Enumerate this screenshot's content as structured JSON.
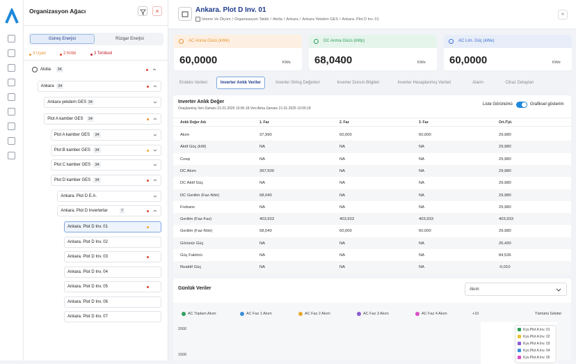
{
  "tree": {
    "title": "Organizasyon Ağacı",
    "tabs": [
      "Güneş Enerjisi",
      "Rüzgar Enerjisi"
    ],
    "alerts": [
      {
        "label": "3 Uyarı",
        "color": "#e8912d"
      },
      {
        "label": "2 Kritik",
        "color": "#d9412f"
      },
      {
        "label": "3 Tehlikeli",
        "color": "#c0232f"
      }
    ],
    "nodes": [
      {
        "label": "Atolia",
        "count": "34",
        "depth": 0,
        "dot": "#d9412f",
        "expanded": true
      },
      {
        "label": "Ankara",
        "count": "34",
        "depth": 1,
        "dot": "#d9412f",
        "expanded": true
      },
      {
        "label": "Ankara yekdem GES",
        "count": "34",
        "depth": 2,
        "dot": null,
        "expanded": false
      },
      {
        "label": "Plot A kamber GES",
        "count": "34",
        "depth": 2,
        "dot": "#e8912d",
        "expanded": true
      },
      {
        "label": "Plot A kamber GES",
        "count": "34",
        "depth": 3,
        "dot": null,
        "expanded": false
      },
      {
        "label": "Plot B kamber GES",
        "count": "34",
        "depth": 3,
        "dot": "#e8a82d",
        "expanded": false
      },
      {
        "label": "Plot C kamber GES",
        "count": "34",
        "depth": 3,
        "dot": null,
        "expanded": false
      },
      {
        "label": "Plot D kamber GES",
        "count": "34",
        "depth": 3,
        "dot": "#d9412f",
        "expanded": true
      },
      {
        "label": "Ankara. Plot D E.A.",
        "count": null,
        "depth": 4,
        "dot": null,
        "expanded": false
      },
      {
        "label": "Ankara. Plot D Inverterlar",
        "count": "7",
        "depth": 4,
        "dot": "#d9412f",
        "expanded": true
      },
      {
        "label": "Ankara. Plot D Inv. 01",
        "count": null,
        "depth": 5,
        "dot": "#e8a82d",
        "selected": true
      },
      {
        "label": "Ankara. Plot D Inv. 02",
        "count": null,
        "depth": 5,
        "dot": null
      },
      {
        "label": "Ankara. Plot D Inv. 03",
        "count": null,
        "depth": 5,
        "dot": "#d9412f"
      },
      {
        "label": "Ankara. Plot D Inv. 04",
        "count": null,
        "depth": 5,
        "dot": null
      },
      {
        "label": "Ankara. Plot D Inv. 05",
        "count": null,
        "depth": 5,
        "dot": "#d9412f"
      },
      {
        "label": "Ankara. Plot D Inv. 06",
        "count": null,
        "depth": 5,
        "dot": null
      },
      {
        "label": "Ankara. Plot D Inv. 07",
        "count": null,
        "depth": 5,
        "dot": null
      }
    ]
  },
  "header": {
    "title": "Ankara. Plot D Inv. 01",
    "breadcrumb": [
      "İzleme Ve Ölçüm",
      "Organizasyon Takibi",
      "Atolia",
      "Ankara",
      "Ankara Yekdem GES",
      "Ankara. Plot D Inv. 01"
    ],
    "separator": "/"
  },
  "cards": [
    {
      "label": "AC Anma Gücü (kWe)",
      "value": "60,0000",
      "unit": "KWe",
      "color": "#fdf0e2",
      "accent": "#e8912d"
    },
    {
      "label": "DC Anma Gücü (kWp)",
      "value": "68,0400",
      "unit": "KWe",
      "color": "#e6f5ec",
      "accent": "#2f9e5b"
    },
    {
      "label": "AC Lim. Güç (kWe)",
      "value": "60,0000",
      "unit": "KWe",
      "color": "#e8eef9",
      "accent": "#3b6fd1"
    }
  ],
  "tabs": {
    "items": [
      "Endeks Verileri",
      "Inverter Anlık Veriler",
      "Inverter String Değerleri",
      "Inverter Durum Bilgileri",
      "Inverter Hesaplanmış Verileri",
      "Alarm",
      "Cihaz Detayları"
    ],
    "active": 1
  },
  "table": {
    "title": "Inverter Anlık Değer",
    "subtitle": "Onaylanmış Veri Zamanı 21.01.2025 10:05:18-Veri Alma Zamanı 21.01.2025 10:05:18",
    "toggle": [
      "Liste Görünümü",
      "Grafiksel gösterim"
    ],
    "columns": [
      "Anlık Değer Adı",
      "1. Faz",
      "2. Faz",
      "3. Faz",
      "Ort./Tpl."
    ],
    "rows": [
      [
        "Akım",
        "37,990",
        "60,000",
        "60,000",
        "29,980"
      ],
      [
        "Aktif Güç (kW)",
        "NA",
        "NA",
        "NA",
        "29,980"
      ],
      [
        "Cosφ",
        "NA",
        "NA",
        "NA",
        "29,980"
      ],
      [
        "DC Akım",
        "397,500",
        "NA",
        "NA",
        "29,980"
      ],
      [
        "DC Aktif Güç",
        "NA",
        "NA",
        "NA",
        "29,980"
      ],
      [
        "DC Gerilim (Faz-Nötr)",
        "68,040",
        "NA",
        "NA",
        "29,980"
      ],
      [
        "Frekans",
        "NA",
        "NA",
        "NA",
        "29,980"
      ],
      [
        "Gerilim (Faz-Faz)",
        "403,933",
        "403,933",
        "403,933",
        "403,933"
      ],
      [
        "Gerilim (Faz-Nötr)",
        "68,040",
        "60,000",
        "60,000",
        "29,980"
      ],
      [
        "Görünür Güç",
        "NA",
        "NA",
        "NA",
        "26,430"
      ],
      [
        "Güç Faktörü",
        "NA",
        "NA",
        "NA",
        "84,536"
      ],
      [
        "Reaktif Güç",
        "NA",
        "NA",
        "NA",
        "-0,010"
      ]
    ]
  },
  "daily": {
    "title": "Günlük Veriler",
    "select": "Akım",
    "chips": [
      {
        "label": "AC Toplam Akım",
        "color": "#2f9e5b"
      },
      {
        "label": "AC Faz 1 Akım",
        "color": "#3b8fd9"
      },
      {
        "label": "AC Faz 2 Akım",
        "color": "#e8a82d"
      },
      {
        "label": "AC Faz 3 Akım",
        "color": "#8a5cd1"
      },
      {
        "label": "AC Faz 4 Akım",
        "color": "#d94fc4"
      }
    ],
    "more": "+10",
    "show_all": "Tümünü Göster",
    "yticks": [
      "2000",
      "1500"
    ],
    "legend": [
      {
        "label": "Kys.Plot A Inv. 01",
        "color": "#2f9e5b"
      },
      {
        "label": "Kys.Plot A Inv. 02",
        "color": "#e8c12d"
      },
      {
        "label": "Kys.Plot A Inv. 03",
        "color": "#8a5cd1"
      },
      {
        "label": "Kys.Plot A Inv. 04",
        "color": "#3b8fd9"
      },
      {
        "label": "Kys.Plot A Inv. 05",
        "color": "#d94fc4"
      }
    ]
  }
}
